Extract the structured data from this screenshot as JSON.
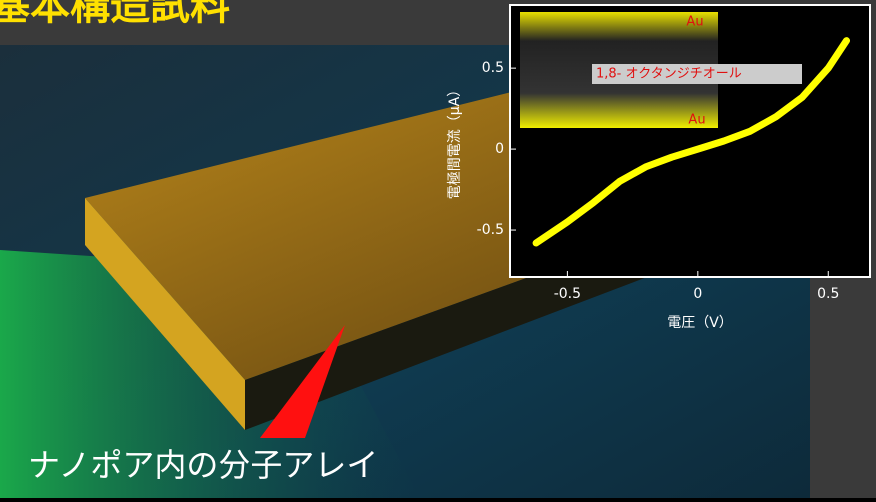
{
  "slide": {
    "title": "基本構造試料",
    "caption": "ナノポア内の分子アレイ"
  },
  "chart_data": {
    "type": "line",
    "x_label": "電圧（V）",
    "y_label": "電極間電流（μA）",
    "annotations": [
      "Au",
      "1,8- オクタンジチオール",
      "Au"
    ],
    "x": [
      -0.62,
      -0.5,
      -0.4,
      -0.3,
      -0.2,
      -0.1,
      0,
      0.1,
      0.2,
      0.3,
      0.4,
      0.5,
      0.57
    ],
    "values": [
      -0.58,
      -0.45,
      -0.33,
      -0.2,
      -0.11,
      -0.05,
      0,
      0.05,
      0.11,
      0.2,
      0.32,
      0.5,
      0.67
    ],
    "color": "#ffff00",
    "xlim": [
      -0.72,
      0.66
    ],
    "ylim": [
      -0.79,
      0.89
    ],
    "xticks": [
      -0.5,
      0,
      0.5
    ],
    "yticks": [
      0.5,
      0,
      -0.5
    ]
  }
}
